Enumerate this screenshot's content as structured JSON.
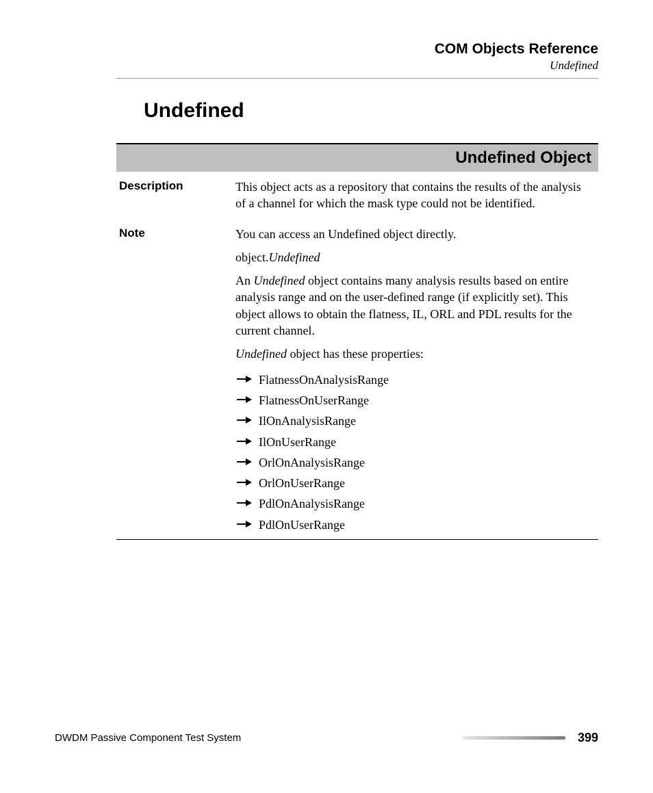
{
  "header": {
    "title": "COM Objects Reference",
    "subtitle": "Undefined"
  },
  "section_title": "Undefined",
  "object": {
    "banner": "Undefined Object",
    "rows": {
      "description": {
        "label": "Description",
        "text": "This object acts as a repository that contains the results of the analysis of a channel for which the mask type could not be identified."
      },
      "note": {
        "label": "Note",
        "line1": "You can access an Undefined object directly.",
        "syntax_prefix": "object.",
        "syntax_italic": "Undefined",
        "para2_lead_italic": "Undefined",
        "para2_rest": " object contains many analysis results based on entire analysis range and on the user-defined range (if explicitly set). This object allows to obtain the flatness, IL, ORL and PDL results for the current channel.",
        "para3_lead_italic": "Undefined",
        "para3_rest": " object has these properties:",
        "properties": [
          "FlatnessOnAnalysisRange",
          "FlatnessOnUserRange",
          "IlOnAnalysisRange",
          "IlOnUserRange",
          "OrlOnAnalysisRange",
          "OrlOnUserRange",
          "PdlOnAnalysisRange",
          "PdlOnUserRange"
        ]
      }
    }
  },
  "footer": {
    "text": "DWDM Passive Component Test System",
    "page": "399"
  },
  "style": {
    "banner_bg": "#bfbfbf",
    "rule_color": "#9a9a9a",
    "arrow_color": "#000000"
  }
}
